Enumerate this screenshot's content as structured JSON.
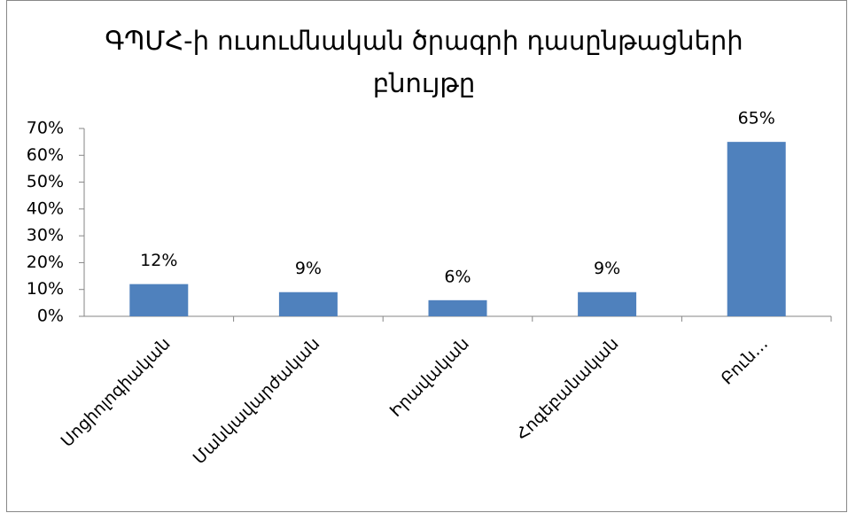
{
  "chart_data": {
    "type": "bar",
    "title": "ԳՊՄՀ-ի ուսումնական ծրագրի դասընթացների բնույթը",
    "categories": [
      "Սոցիոլոգիական",
      "Մանկավարժական",
      "Իրավական",
      "Հոգեբանական",
      "Բուն…"
    ],
    "values": [
      12,
      9,
      6,
      9,
      65
    ],
    "value_labels": [
      "12%",
      "9%",
      "6%",
      "9%",
      "65%"
    ],
    "color": "#4f81bd",
    "ylim": [
      0,
      70
    ],
    "yticks": [
      {
        "value": 0,
        "label": "0%"
      },
      {
        "value": 10,
        "label": "10%"
      },
      {
        "value": 20,
        "label": "20%"
      },
      {
        "value": 30,
        "label": "30%"
      },
      {
        "value": 40,
        "label": "40%"
      },
      {
        "value": 50,
        "label": "50%"
      },
      {
        "value": 60,
        "label": "60%"
      },
      {
        "value": 70,
        "label": "70%"
      }
    ]
  }
}
